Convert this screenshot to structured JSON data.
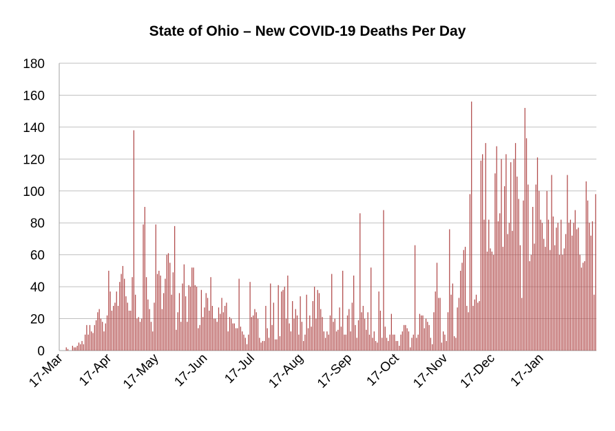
{
  "chart_data": {
    "type": "bar",
    "title": "State of Ohio – New COVID-19 Deaths Per Day",
    "xlabel": "",
    "ylabel": "",
    "ylim": [
      0,
      180
    ],
    "yticks": [
      0,
      20,
      40,
      60,
      80,
      100,
      120,
      140,
      160,
      180
    ],
    "xticks": [
      "17-Mar",
      "17-Apr",
      "17-May",
      "17-Jun",
      "17-Jul",
      "17-Aug",
      "17-Sep",
      "17-Oct",
      "17-Nov",
      "17-Dec",
      "17-Jan"
    ],
    "x_start": "17-Mar",
    "grid": true,
    "bar_color": "#b04848",
    "values": [
      0,
      0,
      0,
      0,
      2,
      1,
      0,
      0,
      3,
      2,
      2,
      3,
      5,
      4,
      6,
      4,
      10,
      16,
      10,
      16,
      12,
      11,
      16,
      19,
      24,
      26,
      20,
      18,
      12,
      17,
      22,
      50,
      37,
      25,
      28,
      30,
      37,
      28,
      43,
      48,
      53,
      45,
      34,
      30,
      25,
      25,
      46,
      138,
      35,
      20,
      21,
      18,
      20,
      79,
      90,
      46,
      32,
      26,
      18,
      12,
      30,
      79,
      48,
      50,
      47,
      26,
      36,
      45,
      60,
      61,
      55,
      35,
      49,
      78,
      13,
      24,
      36,
      18,
      42,
      54,
      34,
      18,
      41,
      40,
      52,
      52,
      41,
      40,
      14,
      16,
      38,
      21,
      27,
      36,
      33,
      25,
      46,
      28,
      20,
      20,
      18,
      27,
      23,
      33,
      24,
      28,
      30,
      12,
      21,
      20,
      17,
      17,
      14,
      14,
      45,
      15,
      12,
      10,
      8,
      4,
      10,
      43,
      21,
      22,
      26,
      24,
      20,
      8,
      5,
      6,
      6,
      28,
      14,
      8,
      42,
      16,
      30,
      7,
      7,
      41,
      9,
      37,
      38,
      40,
      20,
      47,
      17,
      12,
      31,
      20,
      26,
      22,
      10,
      34,
      18,
      6,
      10,
      35,
      14,
      22,
      15,
      31,
      40,
      20,
      38,
      36,
      26,
      21,
      12,
      8,
      12,
      10,
      22,
      48,
      18,
      20,
      12,
      13,
      27,
      15,
      50,
      10,
      10,
      22,
      26,
      12,
      30,
      47,
      16,
      8,
      19,
      86,
      24,
      28,
      20,
      13,
      24,
      10,
      52,
      8,
      12,
      6,
      5,
      37,
      25,
      8,
      88,
      15,
      8,
      6,
      10,
      23,
      10,
      10,
      6,
      6,
      3,
      10,
      12,
      16,
      16,
      14,
      12,
      2,
      8,
      10,
      66,
      8,
      10,
      23,
      22,
      22,
      14,
      20,
      18,
      16,
      8,
      4,
      24,
      37,
      55,
      33,
      33,
      5,
      12,
      10,
      6,
      24,
      76,
      35,
      42,
      9,
      8,
      27,
      33,
      50,
      55,
      63,
      65,
      28,
      24,
      98,
      156,
      28,
      32,
      35,
      30,
      31,
      119,
      123,
      82,
      130,
      62,
      82,
      64,
      62,
      60,
      111,
      128,
      81,
      86,
      120,
      65,
      103,
      123,
      73,
      80,
      118,
      75,
      120,
      130,
      109,
      95,
      66,
      33,
      94,
      152,
      133,
      104,
      56,
      60,
      90,
      67,
      104,
      121,
      100,
      82,
      80,
      70,
      65,
      100,
      82,
      63,
      110,
      84,
      66,
      77,
      80,
      60,
      82,
      60,
      64,
      73,
      110,
      80,
      82,
      72,
      80,
      88,
      76,
      77,
      60,
      52,
      55,
      56,
      106,
      94,
      80,
      72,
      81,
      35,
      98
    ]
  }
}
